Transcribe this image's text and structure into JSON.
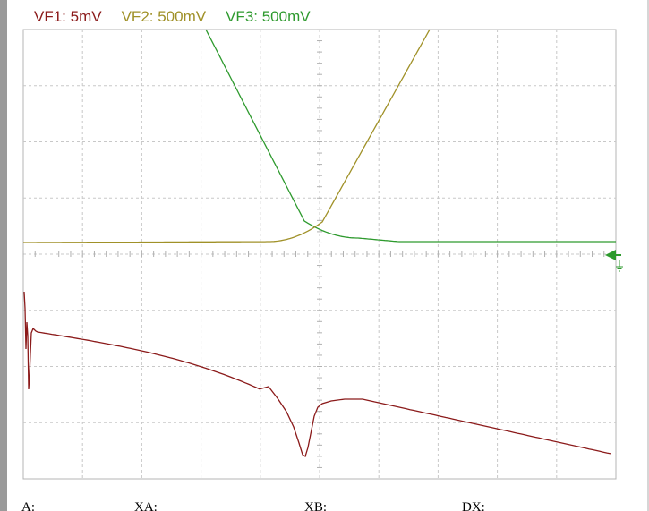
{
  "channels": [
    {
      "label": "VF1: 5mV",
      "color": "#8b1a1a"
    },
    {
      "label": "VF2: 500mV",
      "color": "#a09128"
    },
    {
      "label": "VF3: 500mV",
      "color": "#2e9a2e"
    }
  ],
  "grid": {
    "divisions_x": 10,
    "divisions_y": 8,
    "style": "dashed",
    "color": "#c8c8c8"
  },
  "ground_marker": {
    "icon": "ground-arrow-icon",
    "color": "#2e9a2e"
  },
  "readouts": {
    "a_label": "A:",
    "xa_label": "XA:",
    "xb_label": "XB:",
    "dx_label": "DX:"
  }
}
